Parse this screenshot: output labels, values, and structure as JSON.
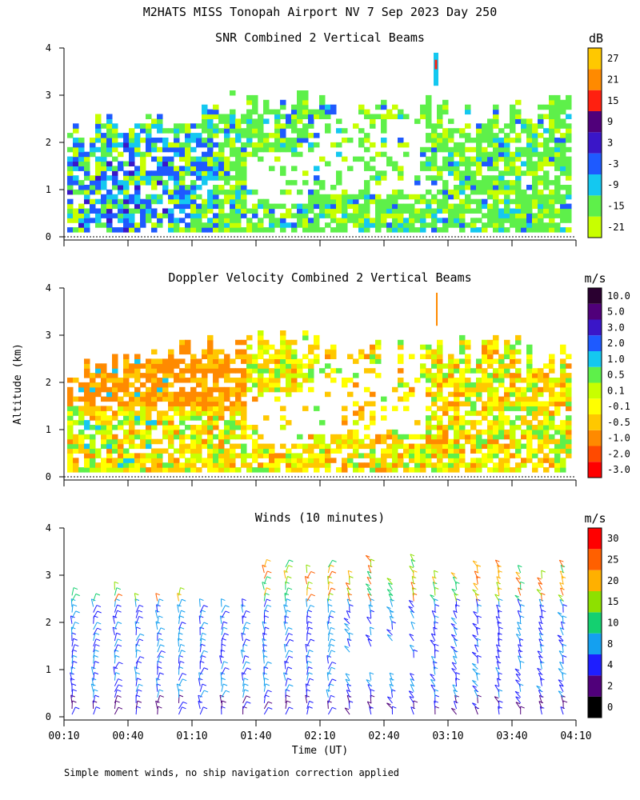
{
  "title": "M2HATS MISS Tonopah Airport NV   7 Sep 2023 Day 250",
  "ylabel": "Altitude (km)",
  "xlabel": "Time (UT)",
  "footnote": "Simple moment winds, no ship navigation correction applied",
  "x_ticks": [
    "00:10",
    "00:40",
    "01:10",
    "01:40",
    "02:10",
    "02:40",
    "03:10",
    "03:40",
    "04:10"
  ],
  "panels": [
    {
      "title": "SNR Combined 2 Vertical Beams",
      "unit": "dB",
      "colorbar": {
        "colors": [
          "#c8ff00",
          "#5ef04a",
          "#14c8f0",
          "#1e5aff",
          "#3a16c8",
          "#50007a",
          "#ff2010",
          "#ff8a00",
          "#ffc800"
        ],
        "labels": [
          "-21",
          "-15",
          "-9",
          "-3",
          "3",
          "9",
          "15",
          "21",
          "27"
        ],
        "label_mode": "boundary"
      }
    },
    {
      "title": "Doppler Velocity Combined 2 Vertical Beams",
      "unit": "m/s",
      "colorbar": {
        "colors": [
          "#ff0000",
          "#ff4a00",
          "#ff8a00",
          "#ffc800",
          "#ffff00",
          "#c8ff00",
          "#5ef04a",
          "#14c8f0",
          "#1e5aff",
          "#3a16c8",
          "#50007a",
          "#2a0030"
        ],
        "labels": [
          "-3.0",
          "-2.0",
          "-1.0",
          "-0.5",
          "-0.1",
          "0.1",
          "0.5",
          "1.0",
          "2.0",
          "3.0",
          "5.0",
          "10.0"
        ],
        "label_mode": "center"
      }
    },
    {
      "title": "Winds (10 minutes)",
      "unit": "m/s",
      "colorbar": {
        "colors": [
          "#000000",
          "#50007a",
          "#1e1eff",
          "#14a0f0",
          "#14d070",
          "#8ee000",
          "#ffb000",
          "#ff6000",
          "#ff0000"
        ],
        "labels": [
          "0",
          "2",
          "4",
          "8",
          "10",
          "15",
          "20",
          "25",
          "30"
        ],
        "label_mode": "boundary"
      }
    }
  ],
  "chart_data": {
    "type": "heatmap",
    "x_range": [
      "00:10",
      "04:10"
    ],
    "ylim": [
      0,
      4
    ],
    "y_ticks": [
      0,
      1,
      2,
      3,
      4
    ],
    "panels": [
      "SNR",
      "Doppler Velocity",
      "Winds"
    ]
  }
}
